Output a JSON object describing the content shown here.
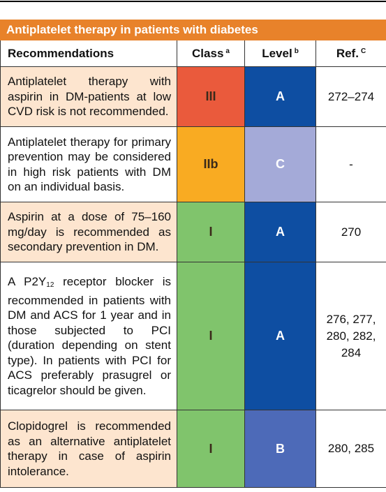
{
  "table": {
    "title": "Antiplatelet therapy in patients with diabetes",
    "header": {
      "recommendations": "Recommendations",
      "class": "Class",
      "class_note": "a",
      "level": "Level",
      "level_note": "b",
      "ref": "Ref.",
      "ref_note": "C"
    },
    "rows": [
      {
        "recommendation": "Antiplatelet therapy with aspirin in DM-patients at low CVD risk is not recommended.",
        "class": "III",
        "level": "A",
        "ref": "272–274"
      },
      {
        "recommendation": "Antiplatelet therapy for primary prevention may be considered in high risk patients with DM on an individual basis.",
        "class": "IIb",
        "level": "C",
        "ref": "-"
      },
      {
        "recommendation": "Aspirin at a dose of 75–160 mg/day is recommended as secondary prevention in DM.",
        "class": "I",
        "level": "A",
        "ref": "270"
      },
      {
        "recommendation_parts": [
          "A P2Y",
          "12",
          " receptor blocker is recommended in patients with DM and ACS for 1 year and in those subjected to PCI (duration depending on stent type). In patients with PCI for ACS preferably prasugrel or ticagrelor should be given."
        ],
        "class": "I",
        "level": "A",
        "ref": "276, 277, 280, 282, 284"
      },
      {
        "recommendation": "Clopidogrel is recommended as an alternative antiplatelet therapy in case of aspirin intolerance.",
        "class": "I",
        "level": "B",
        "ref": "280, 285"
      }
    ]
  }
}
